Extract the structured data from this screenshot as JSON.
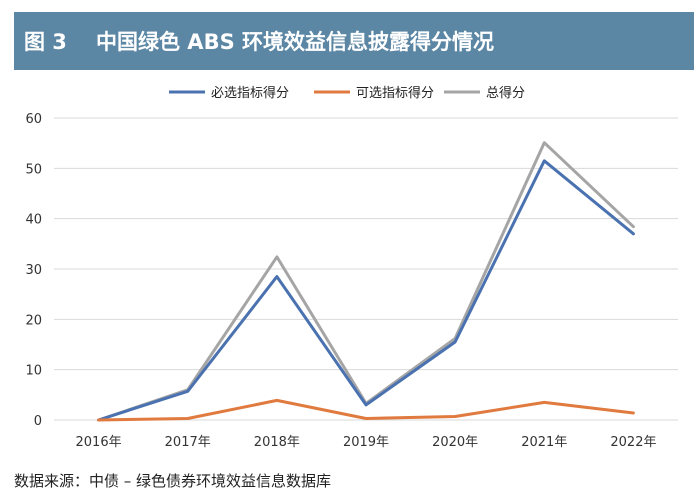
{
  "header": {
    "figure_number": "图 3",
    "title": "中国绿色 ABS 环境效益信息披露得分情况"
  },
  "source": "数据来源：中债 – 绿色债券环境效益信息数据库",
  "colors": {
    "header_bg": "#5b86a4",
    "required": "#4a72b0",
    "optional": "#e07a3f",
    "total": "#a5a5a5"
  },
  "chart_data": {
    "type": "line",
    "categories": [
      "2016年",
      "2017年",
      "2018年",
      "2019年",
      "2020年",
      "2021年",
      "2022年"
    ],
    "series": [
      {
        "name": "必选指标得分",
        "color": "#4a72b0",
        "values": [
          0,
          5.7,
          28.5,
          3,
          15.5,
          51.5,
          37
        ]
      },
      {
        "name": "可选指标得分",
        "color": "#e07a3f",
        "values": [
          0,
          0.3,
          3.9,
          0.3,
          0.7,
          3.5,
          1.4
        ]
      },
      {
        "name": "总得分",
        "color": "#a5a5a5",
        "values": [
          0,
          6,
          32.4,
          3.3,
          16.2,
          55.1,
          38.4
        ]
      }
    ],
    "yticks": [
      0,
      10,
      20,
      30,
      40,
      50,
      60
    ],
    "ylim": [
      0,
      60
    ],
    "legend_position": "top",
    "grid": true
  }
}
